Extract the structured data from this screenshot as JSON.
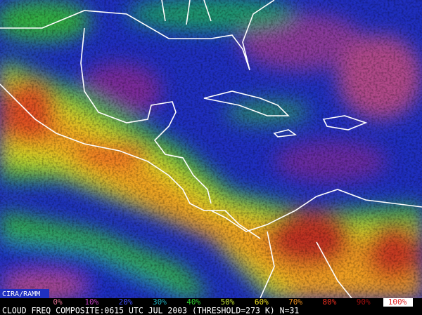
{
  "credit": "CIRA/RAMM",
  "legend": {
    "labels": [
      "0%",
      "10%",
      "20%",
      "30%",
      "40%",
      "50%",
      "60%",
      "70%",
      "80%",
      "90%",
      "100%"
    ]
  },
  "caption": "CLOUD FREQ COMPOSITE:0615 UTC JUL 2003 (THRESHOLD=273 K) N=31"
}
